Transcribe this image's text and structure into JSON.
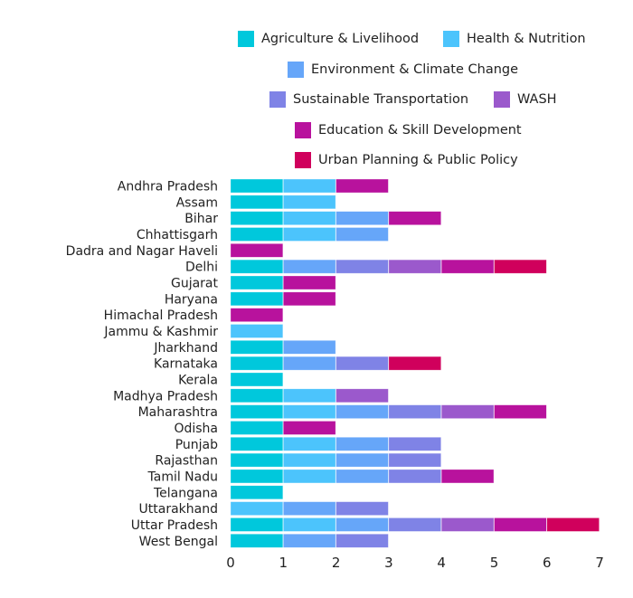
{
  "chart_data": {
    "type": "bar",
    "orientation": "horizontal",
    "stacked": true,
    "title": "",
    "xlabel": "",
    "ylabel": "",
    "xlim": [
      0,
      7
    ],
    "xticks": [
      "0",
      "1",
      "2",
      "3",
      "4",
      "5",
      "6",
      "7"
    ],
    "grid": false,
    "legend_position": "top",
    "categories": [
      "Andhra Pradesh",
      "Assam",
      "Bihar",
      "Chhattisgarh",
      "Dadra and Nagar Haveli",
      "Delhi",
      "Gujarat",
      "Haryana",
      "Himachal Pradesh",
      "Jammu & Kashmir",
      "Jharkhand",
      "Karnataka",
      "Kerala",
      "Madhya Pradesh",
      "Maharashtra",
      "Odisha",
      "Punjab",
      "Rajasthan",
      "Tamil Nadu",
      "Telangana",
      "Uttarakhand",
      "Uttar Pradesh",
      "West Bengal"
    ],
    "series": [
      {
        "name": "Agriculture & Livelihood",
        "color": "#00c8dc",
        "values": [
          1,
          1,
          1,
          1,
          0,
          1,
          1,
          1,
          0,
          0,
          1,
          1,
          1,
          1,
          1,
          1,
          1,
          1,
          1,
          1,
          0,
          1,
          1
        ]
      },
      {
        "name": "Health & Nutrition",
        "color": "#4cc4fc",
        "values": [
          1,
          1,
          1,
          1,
          0,
          0,
          0,
          0,
          0,
          1,
          0,
          0,
          0,
          1,
          1,
          0,
          1,
          1,
          1,
          0,
          1,
          1,
          0
        ]
      },
      {
        "name": "Environment & Climate Change",
        "color": "#66a6f9",
        "values": [
          0,
          0,
          1,
          1,
          0,
          1,
          0,
          0,
          0,
          0,
          1,
          1,
          0,
          0,
          1,
          0,
          1,
          1,
          1,
          0,
          1,
          1,
          1
        ]
      },
      {
        "name": "Sustainable Transportation",
        "color": "#7f83e6",
        "values": [
          0,
          0,
          0,
          0,
          0,
          1,
          0,
          0,
          0,
          0,
          0,
          1,
          0,
          0,
          1,
          0,
          1,
          1,
          1,
          0,
          1,
          1,
          1
        ]
      },
      {
        "name": "WASH",
        "color": "#9b59cc",
        "values": [
          0,
          0,
          0,
          0,
          0,
          1,
          0,
          0,
          0,
          0,
          0,
          0,
          0,
          1,
          1,
          0,
          0,
          0,
          0,
          0,
          0,
          1,
          0
        ]
      },
      {
        "name": "Education & Skill Development",
        "color": "#b8129d",
        "values": [
          1,
          0,
          1,
          0,
          1,
          1,
          1,
          1,
          1,
          0,
          0,
          0,
          0,
          0,
          1,
          1,
          0,
          0,
          1,
          0,
          0,
          1,
          0
        ]
      },
      {
        "name": "Urban Planning & Public Policy",
        "color": "#d0005c",
        "values": [
          0,
          0,
          0,
          0,
          0,
          1,
          0,
          0,
          0,
          0,
          0,
          1,
          0,
          0,
          0,
          0,
          0,
          0,
          0,
          0,
          0,
          1,
          0
        ]
      }
    ]
  }
}
